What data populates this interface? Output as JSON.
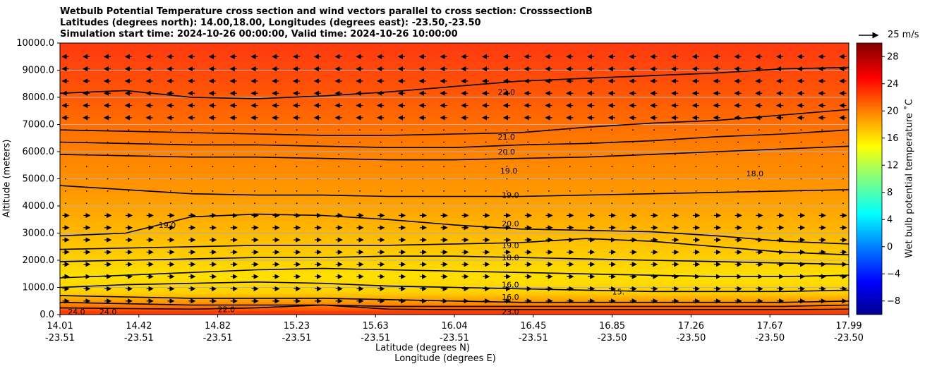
{
  "titles": {
    "line1": "Wetbulb Potential Temperature cross section and wind vectors parallel to cross section: CrosssectionB",
    "line2": "Latitudes (degrees north): 14.00,18.00, Longitudes (degrees east): -23.50,-23.50",
    "line3": "Simulation start time: 2024-10-26 00:00:00, Valid time: 2024-10-26 10:00:00"
  },
  "axes": {
    "ylabel": "Altitude (meters)",
    "xlabel_lat": "Latitude (degrees N)",
    "xlabel_lon": "Longitude (degrees E)",
    "cbar_label": "Wet bulb potential temperature ˚C"
  },
  "reference_vector": {
    "label": "25 m/s"
  },
  "chart_data": {
    "type": "heatmap",
    "ylim": [
      0,
      10000
    ],
    "y_ticks": [
      "0.0",
      "1000.0",
      "2000.0",
      "3000.0",
      "4000.0",
      "5000.0",
      "6000.0",
      "7000.0",
      "8000.0",
      "9000.0",
      "10000.0"
    ],
    "x_ticks": [
      {
        "lat": "14.01",
        "lon": "-23.51"
      },
      {
        "lat": "14.42",
        "lon": "-23.51"
      },
      {
        "lat": "14.82",
        "lon": "-23.51"
      },
      {
        "lat": "15.23",
        "lon": "-23.51"
      },
      {
        "lat": "15.63",
        "lon": "-23.51"
      },
      {
        "lat": "16.04",
        "lon": "-23.51"
      },
      {
        "lat": "16.45",
        "lon": "-23.51"
      },
      {
        "lat": "16.85",
        "lon": "-23.50"
      },
      {
        "lat": "17.26",
        "lon": "-23.50"
      },
      {
        "lat": "17.67",
        "lon": "-23.50"
      },
      {
        "lat": "17.99",
        "lon": "-23.50"
      }
    ],
    "colorbar": {
      "range": [
        -10,
        30
      ],
      "ticks": [
        "−8",
        "−4",
        "0",
        "4",
        "8",
        "12",
        "16",
        "20",
        "24",
        "28"
      ]
    },
    "grid": "horizontal",
    "contour_labels": [
      {
        "text": "22.0",
        "alt": 8200,
        "xfrac": 0.555
      },
      {
        "text": "21.0",
        "alt": 6550,
        "xfrac": 0.555
      },
      {
        "text": "20.0",
        "alt": 6000,
        "xfrac": 0.555
      },
      {
        "text": "19.0",
        "alt": 5300,
        "xfrac": 0.558
      },
      {
        "text": "19.0",
        "alt": 4400,
        "xfrac": 0.56
      },
      {
        "text": "18.0",
        "alt": 5200,
        "xfrac": 0.87
      },
      {
        "text": "19.0",
        "alt": 3300,
        "xfrac": 0.125
      },
      {
        "text": "20.0",
        "alt": 3350,
        "xfrac": 0.56
      },
      {
        "text": "19.0",
        "alt": 2550,
        "xfrac": 0.56
      },
      {
        "text": "18.0",
        "alt": 2100,
        "xfrac": 0.56
      },
      {
        "text": "16.0",
        "alt": 1100,
        "xfrac": 0.56
      },
      {
        "text": "16.0",
        "alt": 650,
        "xfrac": 0.56
      },
      {
        "text": "15.",
        "alt": 850,
        "xfrac": 0.7
      },
      {
        "text": "22.0",
        "alt": 200,
        "xfrac": 0.2
      },
      {
        "text": "24.0",
        "alt": 100,
        "xfrac": 0.01
      },
      {
        "text": "24.0",
        "alt": 100,
        "xfrac": 0.05
      },
      {
        "text": "23.0",
        "alt": 100,
        "xfrac": 0.56
      }
    ]
  }
}
